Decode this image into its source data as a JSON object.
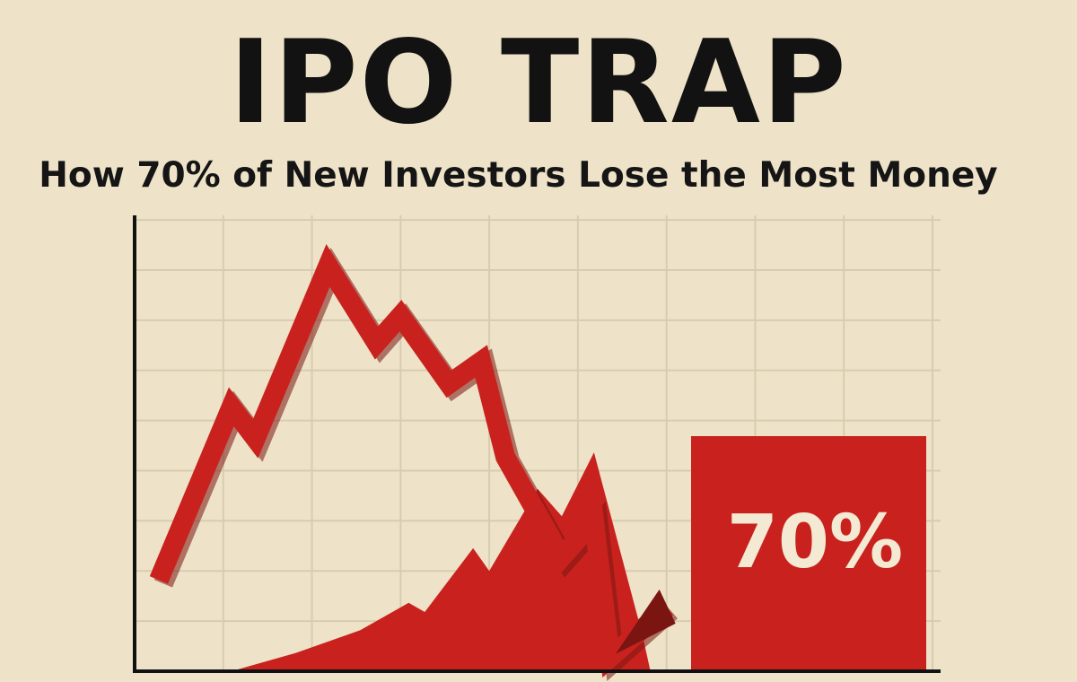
{
  "header": {
    "title": "IPO TRAP",
    "subtitle": "How 70% of New Investors Lose the Most Money"
  },
  "colors": {
    "background": "#eee3c8",
    "accent_red": "#c9221e",
    "dark_red": "#7a1512",
    "grid": "#d8ccb0",
    "axis": "#111111"
  },
  "chart_data": {
    "type": "line",
    "title": "",
    "xlabel": "",
    "ylabel": "",
    "grid": true,
    "xlim": [
      0,
      10
    ],
    "ylim": [
      0,
      10
    ],
    "series": [
      {
        "kind": "line",
        "x": [
          0.3,
          1.2,
          1.5,
          2.4,
          3.0,
          3.3,
          3.9,
          4.3,
          4.6,
          5.3,
          5.7,
          5.9,
          6.6
        ],
        "y": [
          2.0,
          5.8,
          5.1,
          8.9,
          7.2,
          7.8,
          6.3,
          6.8,
          4.7,
          2.5,
          3.3,
          0.3,
          1.4
        ]
      },
      {
        "kind": "area",
        "x": [
          1.2,
          2.0,
          2.8,
          3.4,
          3.6,
          4.2,
          4.4,
          5.0,
          5.3,
          5.7,
          6.3,
          6.4
        ],
        "y": [
          0.0,
          0.4,
          0.9,
          1.5,
          1.3,
          2.7,
          2.2,
          4.0,
          3.4,
          4.8,
          0.8,
          0.0
        ]
      }
    ],
    "annotations": [
      {
        "text": "70%",
        "placement": "lower-right"
      }
    ]
  }
}
